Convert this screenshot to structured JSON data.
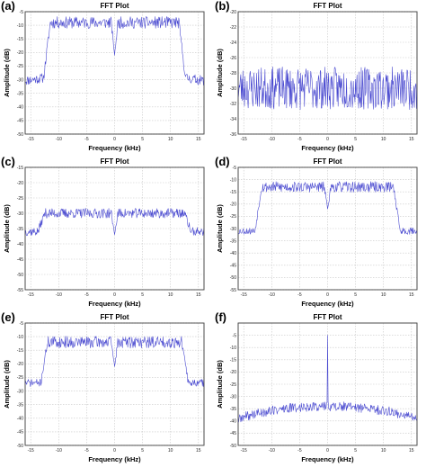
{
  "figure_letters": [
    "(a)",
    "(b)",
    "(c)",
    "(d)",
    "(e)",
    "(f)"
  ],
  "series_color": "#4a4ad0",
  "chart_data": [
    {
      "type": "line",
      "title": "FFT Plot",
      "xlabel": "Frequency (kHz)",
      "ylabel": "Amplitude (dB)",
      "xlim": [
        -16,
        16
      ],
      "ylim": [
        -50,
        -5
      ],
      "xticks": [
        -15,
        -10,
        -5,
        0,
        5,
        10,
        15
      ],
      "yticks": [
        -50,
        -45,
        -40,
        -35,
        -30,
        -25,
        -20,
        -15,
        -10,
        -5
      ],
      "grid": true,
      "series": [
        {
          "kind": "band",
          "floor": -29,
          "floor_slope": 0.3,
          "top": -9,
          "edge": 11.5,
          "ripple": 2.2,
          "floor_ripple": 1.8,
          "notch_at": 0,
          "notch_depth": -21,
          "seed": 11,
          "x": [],
          "values": []
        }
      ]
    },
    {
      "type": "line",
      "title": "FFT Plot",
      "xlabel": "Frequency (kHz)",
      "ylabel": "Amplitude (dB)",
      "xlim": [
        -16,
        16
      ],
      "ylim": [
        -36,
        -20
      ],
      "xticks": [
        -15,
        -10,
        -5,
        0,
        5,
        10,
        15
      ],
      "yticks": [
        -36,
        -34,
        -32,
        -30,
        -28,
        -26,
        -24,
        -22,
        -20
      ],
      "grid": true,
      "series": [
        {
          "kind": "noise",
          "center": -30,
          "ripple": 2.8,
          "seed": 23,
          "x": [],
          "values": []
        }
      ]
    },
    {
      "type": "line",
      "title": "FFT Plot",
      "xlabel": "Frequency (kHz)",
      "ylabel": "Amplitude (dB)",
      "xlim": [
        -16,
        16
      ],
      "ylim": [
        -55,
        -15
      ],
      "xticks": [
        -15,
        -10,
        -5,
        0,
        5,
        10,
        15
      ],
      "yticks": [
        -55,
        -50,
        -45,
        -40,
        -35,
        -30,
        -25,
        -20,
        -15
      ],
      "grid": true,
      "series": [
        {
          "kind": "band",
          "floor": -36,
          "floor_slope": 0.0,
          "top": -30,
          "edge": 12.5,
          "ripple": 1.6,
          "floor_ripple": 1.4,
          "notch_at": 0,
          "notch_depth": -37,
          "seed": 37,
          "x": [],
          "values": []
        }
      ]
    },
    {
      "type": "line",
      "title": "FFT Plot",
      "xlabel": "Frequency (kHz)",
      "ylabel": "Amplitude (dB)",
      "xlim": [
        -16,
        16
      ],
      "ylim": [
        -55,
        -5
      ],
      "xticks": [
        -15,
        -10,
        -5,
        0,
        5,
        10,
        15
      ],
      "yticks": [
        -55,
        -50,
        -45,
        -40,
        -35,
        -30,
        -25,
        -20,
        -15,
        -10,
        -5
      ],
      "grid": true,
      "series": [
        {
          "kind": "band",
          "floor": -31,
          "floor_slope": 0.0,
          "top": -13,
          "edge": 11.8,
          "ripple": 2.2,
          "floor_ripple": 1.4,
          "notch_at": 0,
          "notch_depth": -22,
          "seed": 53,
          "x": [],
          "values": []
        }
      ]
    },
    {
      "type": "line",
      "title": "FFT Plot",
      "xlabel": "Frequency (kHz)",
      "ylabel": "Amplitude (dB)",
      "xlim": [
        -16,
        16
      ],
      "ylim": [
        -50,
        -5
      ],
      "xticks": [
        -15,
        -10,
        -5,
        0,
        5,
        10,
        15
      ],
      "yticks": [
        -50,
        -45,
        -40,
        -35,
        -30,
        -25,
        -20,
        -15,
        -10,
        -5
      ],
      "grid": true,
      "series": [
        {
          "kind": "band",
          "floor": -27,
          "floor_slope": 0.0,
          "top": -12,
          "edge": 12.0,
          "ripple": 2.2,
          "floor_ripple": 1.4,
          "notch_at": 0,
          "notch_depth": -21,
          "seed": 71,
          "x": [],
          "values": []
        }
      ]
    },
    {
      "type": "line",
      "title": "FFT Plot",
      "xlabel": "Frequency (kHz)",
      "ylabel": "Amplitude (dB)",
      "xlim": [
        -16,
        16
      ],
      "ylim": [
        -50,
        0
      ],
      "xticks": [
        -15,
        -10,
        -5,
        0,
        5,
        10,
        15
      ],
      "yticks": [
        -50,
        -45,
        -40,
        -35,
        -30,
        -25,
        -20,
        -15,
        -10,
        -5
      ],
      "grid": true,
      "series": [
        {
          "kind": "hump",
          "floor": -40,
          "top": -34,
          "ripple": 2.0,
          "spike_at": 0,
          "spike_value": -5,
          "seed": 89,
          "x": [],
          "values": []
        }
      ]
    }
  ]
}
